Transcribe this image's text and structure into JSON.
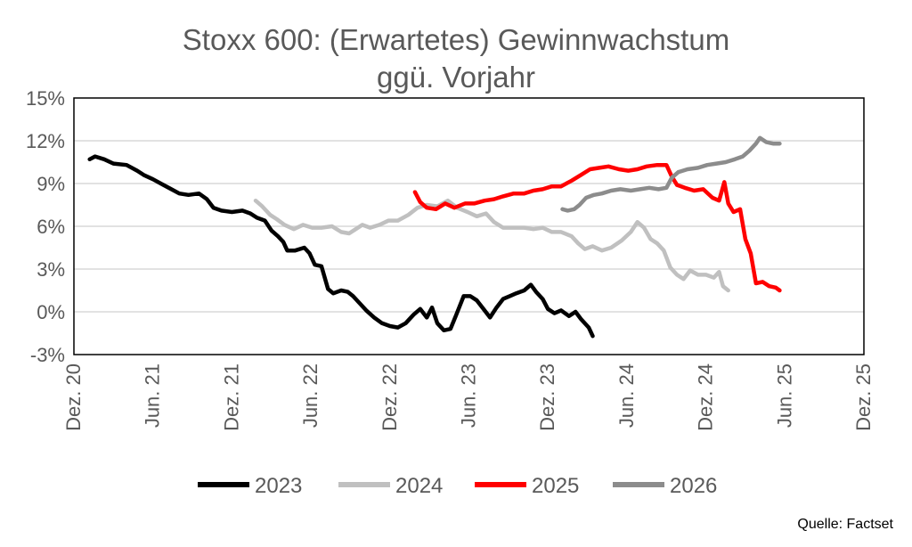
{
  "chart_data": {
    "type": "line",
    "title": [
      "Stoxx 600: (Erwartetes) Gewinnwachstum",
      "ggü. Vorjahr"
    ],
    "ylim": [
      -3,
      15
    ],
    "yticks": [
      15,
      12,
      9,
      6,
      3,
      0,
      -3
    ],
    "ytick_labels": [
      "15%",
      "12%",
      "9%",
      "6%",
      "3%",
      "0%",
      "-3%"
    ],
    "xlim": [
      0,
      60
    ],
    "xticks": [
      0,
      6,
      12,
      18,
      24,
      30,
      36,
      42,
      48,
      54,
      60
    ],
    "xtick_labels": [
      "Dez. 20",
      "Jun. 21",
      "Dez. 21",
      "Jun. 22",
      "Dez. 22",
      "Jun. 23",
      "Dez. 23",
      "Jun. 24",
      "Dez. 24",
      "Jun. 25",
      "Dez. 25"
    ],
    "x_unit": "months since Dez. 20",
    "grid": "horizontal",
    "legend_position": "bottom",
    "series": [
      {
        "name": "2023",
        "color": "#000000",
        "points": [
          [
            1.2,
            10.7
          ],
          [
            1.6,
            10.9
          ],
          [
            2.3,
            10.7
          ],
          [
            3.0,
            10.4
          ],
          [
            4.0,
            10.3
          ],
          [
            4.8,
            9.9
          ],
          [
            5.3,
            9.6
          ],
          [
            6.0,
            9.3
          ],
          [
            6.8,
            8.9
          ],
          [
            7.4,
            8.6
          ],
          [
            8.0,
            8.3
          ],
          [
            8.7,
            8.2
          ],
          [
            9.5,
            8.3
          ],
          [
            10.1,
            7.9
          ],
          [
            10.6,
            7.3
          ],
          [
            11.2,
            7.1
          ],
          [
            12.0,
            7.0
          ],
          [
            12.8,
            7.1
          ],
          [
            13.4,
            6.9
          ],
          [
            13.9,
            6.6
          ],
          [
            14.5,
            6.4
          ],
          [
            15.0,
            5.7
          ],
          [
            15.5,
            5.3
          ],
          [
            15.9,
            4.9
          ],
          [
            16.2,
            4.3
          ],
          [
            16.8,
            4.3
          ],
          [
            17.5,
            4.5
          ],
          [
            17.9,
            4.1
          ],
          [
            18.3,
            3.3
          ],
          [
            18.8,
            3.2
          ],
          [
            19.3,
            1.6
          ],
          [
            19.7,
            1.3
          ],
          [
            20.3,
            1.5
          ],
          [
            20.8,
            1.4
          ],
          [
            21.2,
            1.1
          ],
          [
            21.7,
            0.6
          ],
          [
            22.2,
            0.1
          ],
          [
            22.8,
            -0.4
          ],
          [
            23.4,
            -0.8
          ],
          [
            24.0,
            -1.0
          ],
          [
            24.6,
            -1.1
          ],
          [
            25.2,
            -0.8
          ],
          [
            25.8,
            -0.2
          ],
          [
            26.3,
            0.2
          ],
          [
            26.8,
            -0.4
          ],
          [
            27.2,
            0.3
          ],
          [
            27.6,
            -0.8
          ],
          [
            28.1,
            -1.3
          ],
          [
            28.6,
            -1.2
          ],
          [
            29.0,
            -0.3
          ],
          [
            29.6,
            1.1
          ],
          [
            30.1,
            1.1
          ],
          [
            30.6,
            0.8
          ],
          [
            31.1,
            0.2
          ],
          [
            31.6,
            -0.4
          ],
          [
            32.1,
            0.3
          ],
          [
            32.6,
            0.9
          ],
          [
            33.1,
            1.1
          ],
          [
            33.6,
            1.3
          ],
          [
            34.2,
            1.5
          ],
          [
            34.7,
            1.9
          ],
          [
            35.1,
            1.4
          ],
          [
            35.6,
            0.9
          ],
          [
            36.0,
            0.2
          ],
          [
            36.5,
            -0.1
          ],
          [
            37.0,
            0.1
          ],
          [
            37.6,
            -0.3
          ],
          [
            38.1,
            0.0
          ],
          [
            38.5,
            -0.5
          ],
          [
            39.1,
            -1.1
          ],
          [
            39.4,
            -1.7
          ]
        ]
      },
      {
        "name": "2024",
        "color": "#c0c0c0",
        "points": [
          [
            13.8,
            7.8
          ],
          [
            14.3,
            7.4
          ],
          [
            14.9,
            6.8
          ],
          [
            15.4,
            6.5
          ],
          [
            16.0,
            6.1
          ],
          [
            16.7,
            5.8
          ],
          [
            17.4,
            6.1
          ],
          [
            18.1,
            5.9
          ],
          [
            18.8,
            5.9
          ],
          [
            19.6,
            6.0
          ],
          [
            20.3,
            5.6
          ],
          [
            20.9,
            5.5
          ],
          [
            21.4,
            5.8
          ],
          [
            21.9,
            6.1
          ],
          [
            22.5,
            5.9
          ],
          [
            23.2,
            6.1
          ],
          [
            23.9,
            6.4
          ],
          [
            24.6,
            6.4
          ],
          [
            25.4,
            6.8
          ],
          [
            26.1,
            7.3
          ],
          [
            26.8,
            7.5
          ],
          [
            27.6,
            7.4
          ],
          [
            28.4,
            7.8
          ],
          [
            29.1,
            7.3
          ],
          [
            29.9,
            7.0
          ],
          [
            30.6,
            6.7
          ],
          [
            31.3,
            6.9
          ],
          [
            31.9,
            6.3
          ],
          [
            32.6,
            5.9
          ],
          [
            33.4,
            5.9
          ],
          [
            34.2,
            5.9
          ],
          [
            34.9,
            5.8
          ],
          [
            35.6,
            5.9
          ],
          [
            36.3,
            5.6
          ],
          [
            37.0,
            5.6
          ],
          [
            37.8,
            5.3
          ],
          [
            38.3,
            4.8
          ],
          [
            38.8,
            4.4
          ],
          [
            39.4,
            4.6
          ],
          [
            40.1,
            4.3
          ],
          [
            40.8,
            4.5
          ],
          [
            41.6,
            5.0
          ],
          [
            42.3,
            5.6
          ],
          [
            42.8,
            6.3
          ],
          [
            43.3,
            5.9
          ],
          [
            43.8,
            5.1
          ],
          [
            44.3,
            4.8
          ],
          [
            44.8,
            4.3
          ],
          [
            45.3,
            3.1
          ],
          [
            45.8,
            2.6
          ],
          [
            46.3,
            2.3
          ],
          [
            46.8,
            2.9
          ],
          [
            47.4,
            2.6
          ],
          [
            48.0,
            2.6
          ],
          [
            48.6,
            2.4
          ],
          [
            49.0,
            2.8
          ],
          [
            49.3,
            1.8
          ],
          [
            49.7,
            1.5
          ]
        ]
      },
      {
        "name": "2025",
        "color": "#ff0000",
        "points": [
          [
            25.9,
            8.4
          ],
          [
            26.3,
            7.7
          ],
          [
            26.8,
            7.3
          ],
          [
            27.5,
            7.2
          ],
          [
            28.2,
            7.6
          ],
          [
            28.9,
            7.3
          ],
          [
            29.7,
            7.6
          ],
          [
            30.4,
            7.6
          ],
          [
            31.2,
            7.8
          ],
          [
            31.9,
            7.9
          ],
          [
            32.6,
            8.1
          ],
          [
            33.4,
            8.3
          ],
          [
            34.2,
            8.3
          ],
          [
            34.9,
            8.5
          ],
          [
            35.6,
            8.6
          ],
          [
            36.3,
            8.8
          ],
          [
            37.0,
            8.8
          ],
          [
            37.8,
            9.2
          ],
          [
            38.5,
            9.6
          ],
          [
            39.2,
            10.0
          ],
          [
            39.9,
            10.1
          ],
          [
            40.6,
            10.2
          ],
          [
            41.4,
            10.0
          ],
          [
            42.1,
            9.9
          ],
          [
            42.8,
            10.0
          ],
          [
            43.5,
            10.2
          ],
          [
            44.3,
            10.3
          ],
          [
            45.0,
            10.3
          ],
          [
            45.4,
            9.5
          ],
          [
            45.8,
            8.9
          ],
          [
            46.4,
            8.7
          ],
          [
            47.1,
            8.5
          ],
          [
            47.8,
            8.6
          ],
          [
            48.5,
            8.0
          ],
          [
            49.0,
            7.8
          ],
          [
            49.4,
            9.1
          ],
          [
            49.7,
            7.6
          ],
          [
            50.1,
            7.0
          ],
          [
            50.6,
            7.2
          ],
          [
            51.0,
            5.1
          ],
          [
            51.4,
            4.1
          ],
          [
            51.8,
            2.0
          ],
          [
            52.3,
            2.1
          ],
          [
            52.8,
            1.8
          ],
          [
            53.3,
            1.7
          ],
          [
            53.6,
            1.5
          ]
        ]
      },
      {
        "name": "2026",
        "color": "#8c8c8c",
        "points": [
          [
            37.1,
            7.2
          ],
          [
            37.5,
            7.1
          ],
          [
            38.0,
            7.2
          ],
          [
            38.4,
            7.5
          ],
          [
            38.9,
            8.0
          ],
          [
            39.5,
            8.2
          ],
          [
            40.1,
            8.3
          ],
          [
            40.8,
            8.5
          ],
          [
            41.5,
            8.6
          ],
          [
            42.3,
            8.5
          ],
          [
            43.0,
            8.6
          ],
          [
            43.7,
            8.7
          ],
          [
            44.4,
            8.6
          ],
          [
            45.0,
            8.7
          ],
          [
            45.4,
            9.4
          ],
          [
            45.9,
            9.8
          ],
          [
            46.6,
            10.0
          ],
          [
            47.4,
            10.1
          ],
          [
            48.1,
            10.3
          ],
          [
            48.8,
            10.4
          ],
          [
            49.5,
            10.5
          ],
          [
            50.2,
            10.7
          ],
          [
            50.8,
            10.9
          ],
          [
            51.3,
            11.3
          ],
          [
            51.8,
            11.8
          ],
          [
            52.1,
            12.2
          ],
          [
            52.6,
            11.9
          ],
          [
            53.1,
            11.8
          ],
          [
            53.6,
            11.8
          ]
        ]
      }
    ],
    "source": "Quelle:  Factset"
  }
}
